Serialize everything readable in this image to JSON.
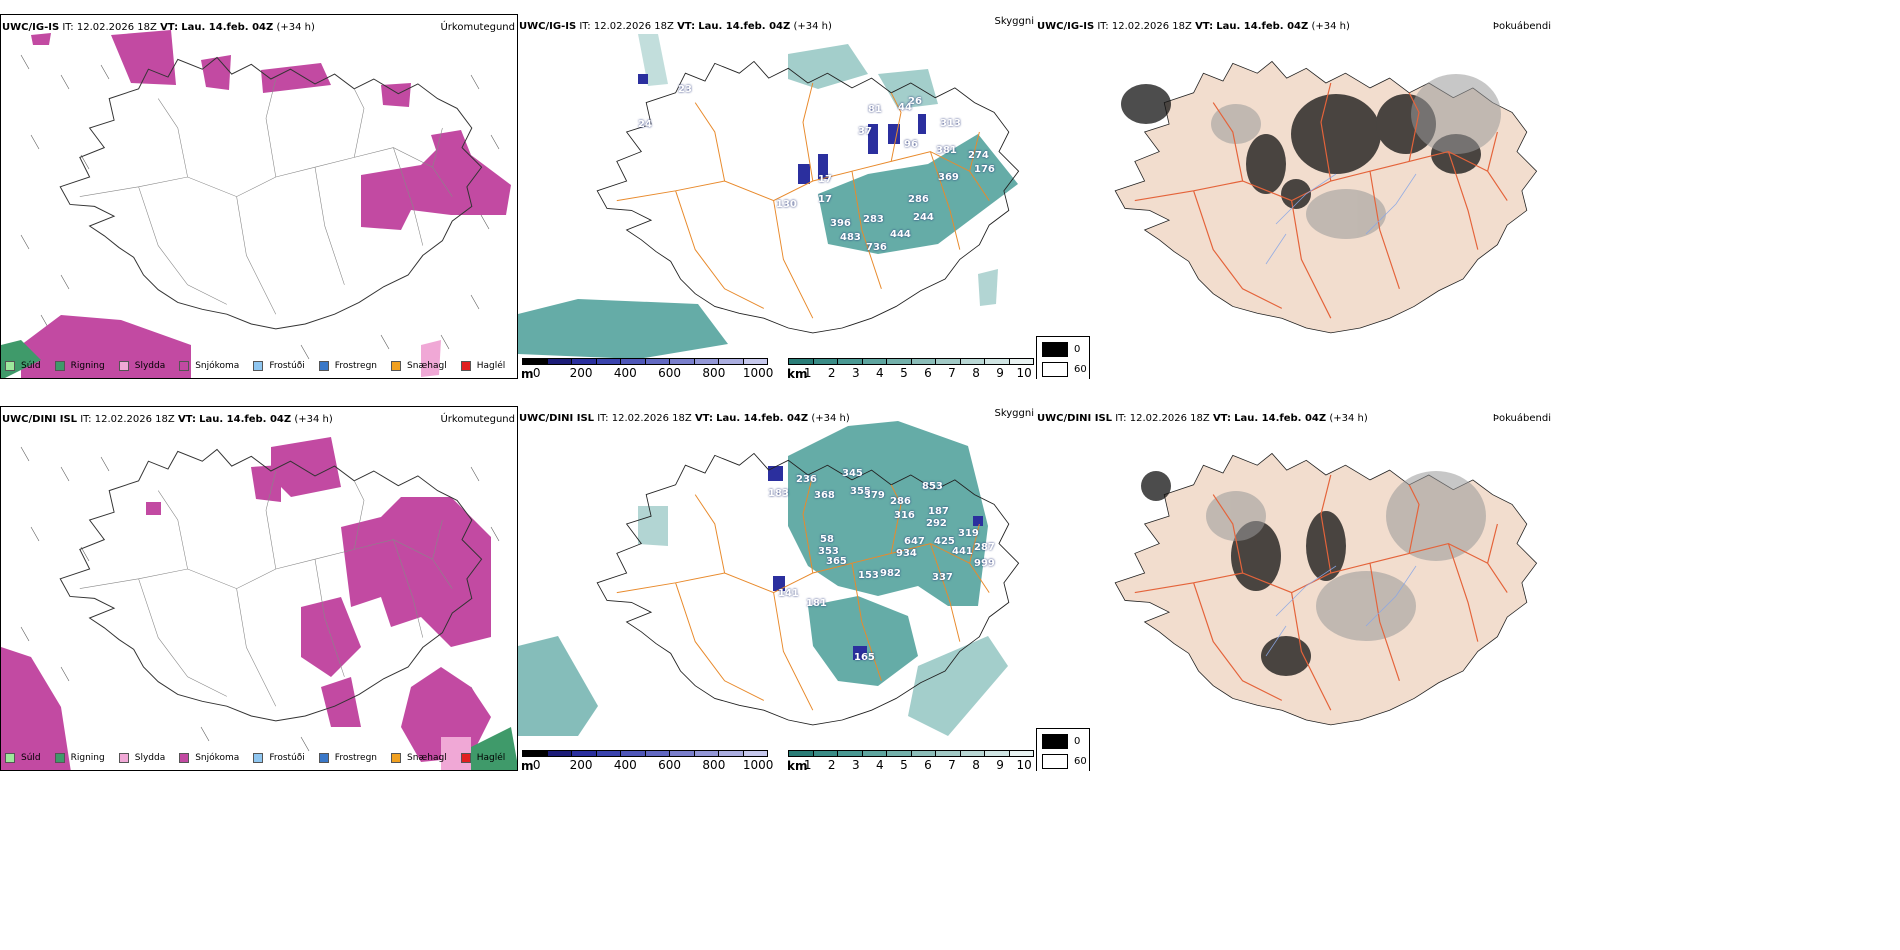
{
  "colors": {
    "precip_snow": "#c24aa2",
    "precip_sleet": "#f0a8d6",
    "precip_rain": "#3f9a6a",
    "cloud_teal": "#4a9e98",
    "cloud_teal_light": "#a6d3cf",
    "cloud_blue": "#2b2f9e",
    "roads": "#e88a2c",
    "land_tan": "#f2ddce",
    "rivers": "#8aa6e6"
  },
  "rows": [
    {
      "model": "UWC/IG-IS",
      "it_label": "IT:",
      "it_value": "12.02.2026 18Z",
      "vt_label": "VT:",
      "vt_value": "Lau. 14.feb. 04Z",
      "lead": "(+34 h)",
      "cloud_labels": [
        "23",
        "24",
        "26",
        "17",
        "130",
        "17",
        "313",
        "381",
        "274",
        "176",
        "369",
        "286",
        "396",
        "283",
        "244",
        "483",
        "736",
        "444",
        "44",
        "81",
        "96",
        "37"
      ]
    },
    {
      "model": "UWC/DINI ISL",
      "it_label": "IT:",
      "it_value": "12.02.2026 18Z",
      "vt_label": "VT:",
      "vt_value": "Lau. 14.feb. 04Z",
      "lead": "(+34 h)",
      "cloud_labels": [
        "236",
        "345",
        "183",
        "368",
        "355",
        "379",
        "853",
        "286",
        "316",
        "187",
        "292",
        "319",
        "647",
        "425",
        "934",
        "441",
        "287",
        "999",
        "353",
        "153",
        "982",
        "337",
        "365",
        "141",
        "181",
        "58",
        "165"
      ]
    }
  ],
  "panels": {
    "precip_title": "Úrkomutegund",
    "cloud_title": "Skyggni",
    "fog_title": "Þokuábendi"
  },
  "precip_legend": [
    {
      "label": "Súld",
      "color": "#9ee89c"
    },
    {
      "label": "Rigning",
      "color": "#3f9a6a"
    },
    {
      "label": "Slydda",
      "color": "#f0a8d6"
    },
    {
      "label": "Snjókoma",
      "color": "#c24aa2"
    },
    {
      "label": "Frostúði",
      "color": "#8fc6f0"
    },
    {
      "label": "Frostregn",
      "color": "#3a78c8"
    },
    {
      "label": "Snæhagl",
      "color": "#f0a020"
    },
    {
      "label": "Haglél",
      "color": "#e02020"
    }
  ],
  "cloudbase_bar": {
    "unit": "m",
    "ticks": [
      "0",
      "200",
      "400",
      "600",
      "800",
      "1000"
    ],
    "colors": [
      "#000000",
      "#1c1c78",
      "#2a2f9e",
      "#3a43ad",
      "#4f57b8",
      "#6269c2",
      "#7a7fcc",
      "#9397d6",
      "#abaee0",
      "#c6c8ec"
    ]
  },
  "visibility_bar": {
    "unit": "km",
    "ticks": [
      "1",
      "2",
      "3",
      "4",
      "5",
      "6",
      "7",
      "8",
      "9",
      "10"
    ],
    "colors": [
      "#2a7d77",
      "#3a8c86",
      "#4a9993",
      "#5ea59f",
      "#74b1ab",
      "#8bbdb8",
      "#a2cac6",
      "#b9d7d4",
      "#d0e5e3",
      "#e8f2f1"
    ]
  },
  "fog_scale": {
    "min_label": "0",
    "max_label": "60"
  }
}
